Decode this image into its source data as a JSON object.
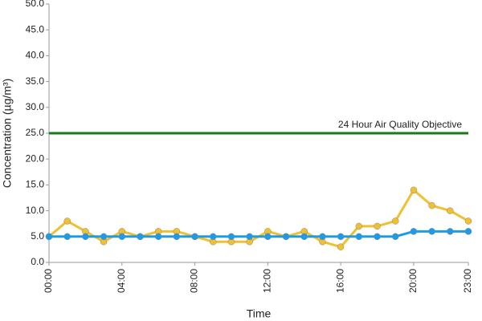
{
  "chart_data": {
    "type": "line",
    "x_label": "Time",
    "y_label": "Concentration (µg/m³)",
    "categories": [
      "00:00",
      null,
      null,
      null,
      "04:00",
      null,
      null,
      null,
      "08:00",
      null,
      null,
      null,
      "12:00",
      null,
      null,
      null,
      "16:00",
      null,
      null,
      null,
      "20:00",
      null,
      null,
      "23:00"
    ],
    "series": [
      {
        "color": "#f0c030",
        "values": [
          5,
          8,
          6,
          4,
          6,
          5,
          6,
          6,
          5,
          4,
          4,
          4,
          6,
          5,
          6,
          4,
          3,
          7,
          7,
          8,
          14,
          11,
          10,
          8
        ]
      },
      {
        "color": "#1e9be8",
        "values": [
          5,
          5,
          5,
          5,
          5,
          5,
          5,
          5,
          5,
          5,
          5,
          5,
          5,
          5,
          5,
          5,
          5,
          5,
          5,
          5,
          6,
          6,
          6,
          6
        ]
      }
    ],
    "reference_line": {
      "value": 25,
      "label": "24 Hour Air Quality Objective",
      "color": "#1a7a1a"
    },
    "ylim": [
      0,
      50
    ],
    "yticks": [
      {
        "value": 0,
        "label": "0.0"
      },
      {
        "value": 5,
        "label": "5.0"
      },
      {
        "value": 10,
        "label": "10.0"
      },
      {
        "value": 15,
        "label": "15.0"
      },
      {
        "value": 20,
        "label": "20.0"
      },
      {
        "value": 25,
        "label": "25.0"
      },
      {
        "value": 30,
        "label": "30.0"
      },
      {
        "value": 35,
        "label": "35.0"
      },
      {
        "value": 40,
        "label": "40.0"
      },
      {
        "value": 45,
        "label": "45.0"
      },
      {
        "value": 50,
        "label": "50.0"
      }
    ],
    "grid": false
  }
}
